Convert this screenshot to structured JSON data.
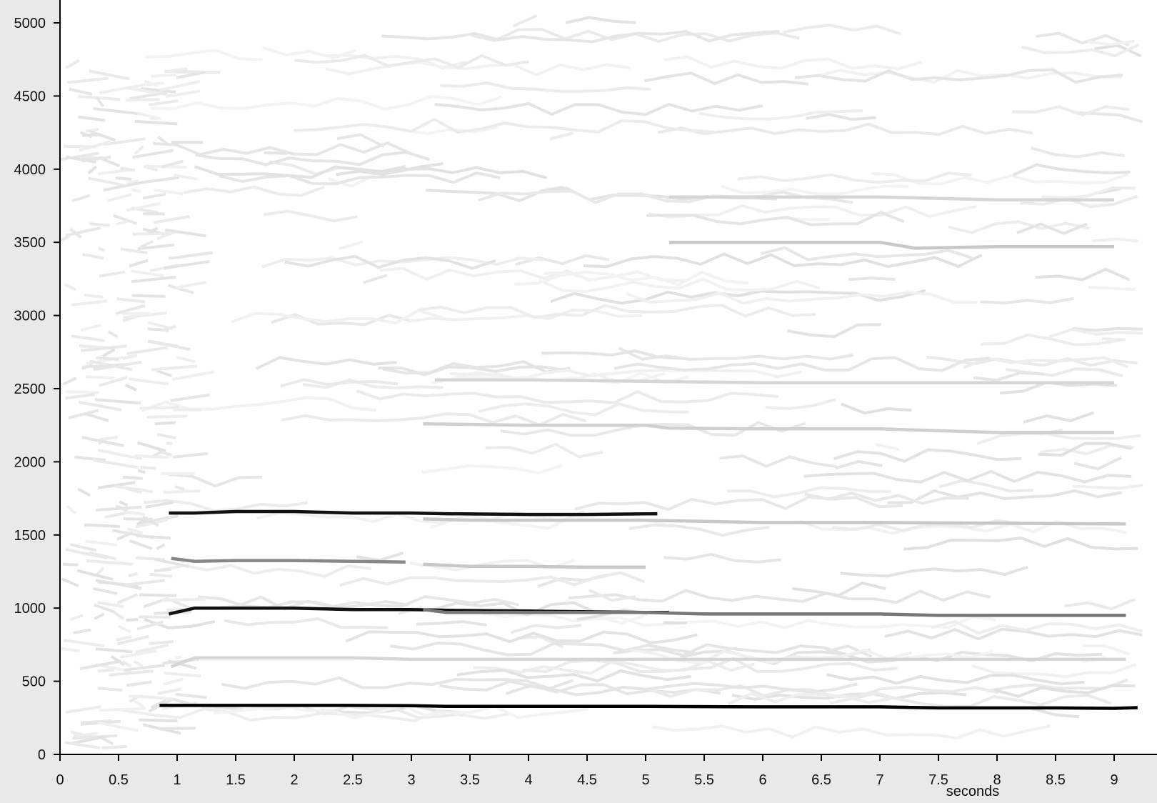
{
  "chart_data": {
    "type": "line",
    "title": "",
    "xlabel": "seconds",
    "ylabel": "",
    "xlim": [
      0,
      9.3
    ],
    "ylim": [
      0,
      5000
    ],
    "x_ticks": [
      "0",
      "0.5",
      "1",
      "1.5",
      "2",
      "2.5",
      "3",
      "3.5",
      "4",
      "4.5",
      "5",
      "5.5",
      "6",
      "6.5",
      "7",
      "7.5",
      "8",
      "8.5",
      "9"
    ],
    "y_ticks": [
      "0",
      "500",
      "1000",
      "1500",
      "2000",
      "2500",
      "3000",
      "3500",
      "4000",
      "4500",
      "5000"
    ],
    "grid": false,
    "legend": "none",
    "series": [
      {
        "x": [
          0.85,
          1.5,
          2.0,
          2.5,
          3.0,
          3.3,
          4.0,
          5.0,
          6.0,
          7.0,
          7.5,
          8.0,
          8.5,
          9.0,
          9.2
        ],
        "y": [
          335,
          335,
          335,
          335,
          333,
          328,
          328,
          328,
          325,
          325,
          318,
          318,
          318,
          315,
          320
        ],
        "color": "#000000"
      },
      {
        "x": [
          0.93,
          1.15,
          1.5,
          2.0,
          2.5,
          3.0,
          3.3,
          4.0,
          4.5,
          5.1
        ],
        "y": [
          1650,
          1650,
          1660,
          1660,
          1650,
          1650,
          1645,
          1640,
          1640,
          1645
        ],
        "color": "#111111"
      },
      {
        "x": [
          0.93,
          1.15,
          1.5,
          2.0,
          2.5,
          3.0,
          3.3,
          4.0,
          5.0,
          5.2
        ],
        "y": [
          960,
          1000,
          1000,
          1000,
          990,
          990,
          985,
          980,
          970,
          970
        ],
        "color": "#111111"
      },
      {
        "x": [
          3.1,
          3.3,
          4.0,
          5.0,
          5.5,
          6.0,
          7.0,
          7.5,
          8.0,
          8.5,
          9.1
        ],
        "y": [
          990,
          970,
          970,
          970,
          960,
          960,
          960,
          950,
          950,
          950,
          950
        ],
        "color": "#777777"
      },
      {
        "x": [
          0.95,
          1.15,
          1.5,
          2.0,
          2.5,
          2.95
        ],
        "y": [
          1340,
          1320,
          1325,
          1325,
          1320,
          1315
        ],
        "color": "#888888"
      },
      {
        "x": [
          3.1,
          3.5,
          4.0,
          5.0,
          6.0,
          7.0,
          8.0,
          9.1
        ],
        "y": [
          1610,
          1600,
          1600,
          1600,
          1585,
          1585,
          1580,
          1575
        ],
        "color": "#c8c8c8"
      },
      {
        "x": [
          3.1,
          3.5,
          4.0,
          4.5,
          5.0
        ],
        "y": [
          1300,
          1285,
          1285,
          1280,
          1280
        ],
        "color": "#c8c8c8"
      },
      {
        "x": [
          0.95,
          1.15,
          1.5,
          2.0,
          2.5,
          3.0,
          3.5,
          4.0,
          5.0,
          6.0,
          7.0,
          8.0,
          9.1
        ],
        "y": [
          600,
          660,
          660,
          660,
          660,
          650,
          650,
          650,
          650,
          650,
          650,
          650,
          650
        ],
        "color": "#d6d6d6"
      },
      {
        "x": [
          5.2,
          6.0,
          7.0,
          7.3,
          8.0,
          9.0
        ],
        "y": [
          3500,
          3500,
          3500,
          3460,
          3470,
          3470
        ],
        "color": "#c8c8c8"
      },
      {
        "x": [
          3.1,
          4.0,
          5.0,
          5.2,
          6.0,
          7.0,
          8.0,
          9.0
        ],
        "y": [
          2260,
          2250,
          2250,
          2230,
          2225,
          2225,
          2200,
          2200
        ],
        "color": "#d0d0d0"
      },
      {
        "x": [
          5.2,
          6.0,
          7.0,
          8.0,
          9.0
        ],
        "y": [
          3810,
          3810,
          3810,
          3790,
          3790
        ],
        "color": "#d6d6d6"
      },
      {
        "x": [
          3.2,
          4.0,
          5.0,
          6.0,
          7.0,
          8.0,
          9.0
        ],
        "y": [
          2560,
          2560,
          2550,
          2540,
          2540,
          2540,
          2540
        ],
        "color": "#d6d6d6"
      }
    ]
  }
}
